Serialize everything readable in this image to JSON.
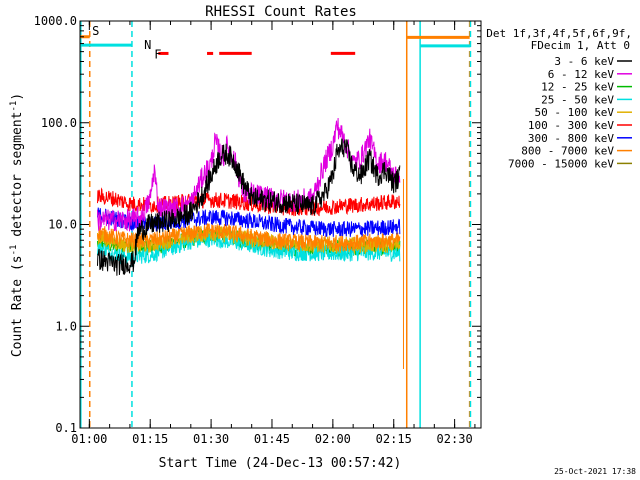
{
  "chart_data": {
    "type": "line",
    "title": "RHESSI Count Rates",
    "xlabel": "Start Time (24-Dec-13 00:57:42)",
    "ylabel_main": "Count Rate (s",
    "ylabel_sup1": "-1",
    "ylabel_mid": " detector segment",
    "ylabel_sup2": "-1",
    "ylabel_end": ")",
    "yscale": "log",
    "ylim": [
      0.1,
      1000
    ],
    "xlim_minutes": [
      57.7,
      156.5
    ],
    "y_ticks": [
      {
        "value": 0.1,
        "label": "0.1"
      },
      {
        "value": 1,
        "label": "1.0"
      },
      {
        "value": 10,
        "label": "10.0"
      },
      {
        "value": 100,
        "label": "100.0"
      },
      {
        "value": 1000,
        "label": "1000.0"
      }
    ],
    "x_ticks": [
      {
        "value": 60,
        "label": "01:00"
      },
      {
        "value": 75,
        "label": "01:15"
      },
      {
        "value": 90,
        "label": "01:30"
      },
      {
        "value": 105,
        "label": "01:45"
      },
      {
        "value": 120,
        "label": "02:00"
      },
      {
        "value": 135,
        "label": "02:15"
      },
      {
        "value": 150,
        "label": "02:30"
      }
    ],
    "legend_header": [
      "Det 1f,3f,4f,5f,6f,9f,",
      "FDecim 1, Att 0"
    ],
    "data_range_minutes": [
      62,
      136.5
    ],
    "series": [
      {
        "name": "3 - 6 keV",
        "color": "#000000",
        "points": [
          [
            62,
            4.6
          ],
          [
            67,
            4.0
          ],
          [
            71,
            4.3
          ],
          [
            72,
            8.5
          ],
          [
            75,
            10
          ],
          [
            80,
            11
          ],
          [
            85,
            13
          ],
          [
            88,
            20
          ],
          [
            90,
            30
          ],
          [
            92,
            46
          ],
          [
            94,
            50
          ],
          [
            96,
            40
          ],
          [
            98,
            25
          ],
          [
            100,
            18
          ],
          [
            105,
            17
          ],
          [
            110,
            16
          ],
          [
            115,
            15
          ],
          [
            118,
            20
          ],
          [
            120,
            30
          ],
          [
            121,
            50
          ],
          [
            123,
            60
          ],
          [
            125,
            35
          ],
          [
            127,
            30
          ],
          [
            129,
            45
          ],
          [
            131,
            30
          ],
          [
            133,
            35
          ],
          [
            135,
            25
          ],
          [
            136.5,
            30
          ]
        ]
      },
      {
        "name": "6 - 12 keV",
        "color": "#e000e0",
        "points": [
          [
            62,
            11
          ],
          [
            70,
            11
          ],
          [
            73,
            12
          ],
          [
            75,
            18
          ],
          [
            76,
            35
          ],
          [
            77,
            15
          ],
          [
            80,
            14
          ],
          [
            85,
            16
          ],
          [
            88,
            30
          ],
          [
            90,
            40
          ],
          [
            91,
            65
          ],
          [
            93,
            45
          ],
          [
            94,
            60
          ],
          [
            96,
            40
          ],
          [
            98,
            20
          ],
          [
            100,
            20
          ],
          [
            105,
            18
          ],
          [
            110,
            17
          ],
          [
            115,
            18
          ],
          [
            118,
            40
          ],
          [
            120,
            60
          ],
          [
            121,
            95
          ],
          [
            123,
            65
          ],
          [
            125,
            40
          ],
          [
            127,
            45
          ],
          [
            129,
            70
          ],
          [
            131,
            40
          ],
          [
            133,
            42
          ],
          [
            135,
            30
          ],
          [
            136.5,
            30
          ]
        ]
      },
      {
        "name": "12 - 25 keV",
        "color": "#00bb00",
        "points": [
          [
            62,
            6.5
          ],
          [
            70,
            6
          ],
          [
            75,
            6
          ],
          [
            80,
            6.5
          ],
          [
            85,
            7.2
          ],
          [
            90,
            8
          ],
          [
            95,
            7.5
          ],
          [
            100,
            6.8
          ],
          [
            105,
            6.2
          ],
          [
            110,
            5.8
          ],
          [
            115,
            5.8
          ],
          [
            120,
            5.8
          ],
          [
            125,
            5.8
          ],
          [
            130,
            6
          ],
          [
            136.5,
            6
          ]
        ]
      },
      {
        "name": "25 - 50 keV",
        "color": "#00e0e0",
        "points": [
          [
            62,
            6
          ],
          [
            66,
            5.2
          ],
          [
            70,
            4.8
          ],
          [
            75,
            5
          ],
          [
            80,
            5.8
          ],
          [
            85,
            6.8
          ],
          [
            90,
            7.2
          ],
          [
            95,
            6.8
          ],
          [
            100,
            6.2
          ],
          [
            105,
            5.6
          ],
          [
            110,
            5.3
          ],
          [
            115,
            5.2
          ],
          [
            120,
            5.2
          ],
          [
            125,
            5.2
          ],
          [
            130,
            5.3
          ],
          [
            136.5,
            5.2
          ]
        ]
      },
      {
        "name": "50 - 100 keV",
        "color": "#e0b000",
        "points": [
          [
            62,
            7.5
          ],
          [
            70,
            6.2
          ],
          [
            75,
            6.3
          ],
          [
            80,
            7
          ],
          [
            85,
            7.8
          ],
          [
            90,
            8.3
          ],
          [
            95,
            7.8
          ],
          [
            100,
            7.2
          ],
          [
            105,
            6.8
          ],
          [
            110,
            6.5
          ],
          [
            115,
            6.3
          ],
          [
            120,
            6.3
          ],
          [
            125,
            6.3
          ],
          [
            130,
            6.3
          ],
          [
            136.5,
            6.3
          ]
        ]
      },
      {
        "name": "100 - 300 keV",
        "color": "#ff0000",
        "points": [
          [
            62,
            19
          ],
          [
            66,
            18
          ],
          [
            70,
            16
          ],
          [
            75,
            15.5
          ],
          [
            80,
            16
          ],
          [
            85,
            17
          ],
          [
            90,
            17.5
          ],
          [
            95,
            17
          ],
          [
            100,
            16
          ],
          [
            105,
            15
          ],
          [
            110,
            14.5
          ],
          [
            115,
            14.5
          ],
          [
            120,
            15
          ],
          [
            125,
            15.5
          ],
          [
            130,
            16
          ],
          [
            136.5,
            17
          ]
        ]
      },
      {
        "name": "300 - 800 keV",
        "color": "#0000ff",
        "points": [
          [
            62,
            12.5
          ],
          [
            66,
            11.5
          ],
          [
            70,
            10.5
          ],
          [
            75,
            10
          ],
          [
            80,
            10.5
          ],
          [
            85,
            11.2
          ],
          [
            90,
            11.8
          ],
          [
            95,
            11.5
          ],
          [
            100,
            10.8
          ],
          [
            105,
            10
          ],
          [
            110,
            9.5
          ],
          [
            115,
            9.2
          ],
          [
            120,
            9
          ],
          [
            125,
            9
          ],
          [
            130,
            9.2
          ],
          [
            136.5,
            9.5
          ]
        ]
      },
      {
        "name": "800 - 7000 keV",
        "color": "#ff8000",
        "points": [
          [
            62,
            8.5
          ],
          [
            66,
            7.5
          ],
          [
            70,
            7
          ],
          [
            75,
            7
          ],
          [
            80,
            7.5
          ],
          [
            85,
            8.3
          ],
          [
            90,
            8.8
          ],
          [
            95,
            8.3
          ],
          [
            100,
            7.6
          ],
          [
            105,
            7
          ],
          [
            110,
            6.8
          ],
          [
            115,
            6.6
          ],
          [
            120,
            6.6
          ],
          [
            125,
            6.6
          ],
          [
            130,
            6.8
          ],
          [
            136.5,
            7
          ]
        ]
      },
      {
        "name": "7000 - 15000 keV",
        "color": "#8b8000",
        "points": []
      }
    ],
    "annotations": [
      {
        "label": "S",
        "color": "#ff8000",
        "x_minutes": 60.7,
        "y_value": 800
      },
      {
        "label": "N",
        "color": "#00e0e0",
        "x_minutes": 73.5,
        "y_value": 580
      },
      {
        "label": "F",
        "color": "#ff0000",
        "x_minutes": 76,
        "y_value": 470
      }
    ],
    "v_lines": [
      {
        "x_minutes": 57.9,
        "color": "#00e0e0",
        "style": "solid"
      },
      {
        "x_minutes": 60.1,
        "color": "#ff8000",
        "style": "dashed"
      },
      {
        "x_minutes": 70.5,
        "color": "#00e0e0",
        "style": "dashed"
      },
      {
        "x_minutes": 138.2,
        "color": "#ff8000",
        "style": "solid"
      },
      {
        "x_minutes": 141.5,
        "color": "#00e0e0",
        "style": "solid"
      },
      {
        "x_minutes": 153.7,
        "color": "#ff8000",
        "style": "dashed"
      },
      {
        "x_minutes": 153.9,
        "color": "#00e0e0",
        "style": "dashed"
      }
    ],
    "h_segments": [
      {
        "from": 57.7,
        "to": 70.5,
        "y_value": 580,
        "color": "#00e0e0"
      },
      {
        "from": 57.7,
        "to": 60.1,
        "y_value": 700,
        "color": "#ff8000"
      },
      {
        "from": 138.2,
        "to": 153.7,
        "y_value": 690,
        "color": "#ff8000"
      },
      {
        "from": 141.5,
        "to": 153.9,
        "y_value": 570,
        "color": "#00e0e0"
      },
      {
        "from": 77,
        "to": 79.5,
        "y_value": 480,
        "color": "#ff0000"
      },
      {
        "from": 89,
        "to": 90.5,
        "y_value": 480,
        "color": "#ff0000"
      },
      {
        "from": 92,
        "to": 100,
        "y_value": 480,
        "color": "#ff0000"
      },
      {
        "from": 119.5,
        "to": 125.5,
        "y_value": 480,
        "color": "#ff0000"
      }
    ],
    "orange_drop": {
      "x_minutes": 137.4,
      "from_value": 28,
      "to_value": 0.38,
      "color": "#ff8000"
    },
    "timestamp": "25-Oct-2021 17:38"
  }
}
